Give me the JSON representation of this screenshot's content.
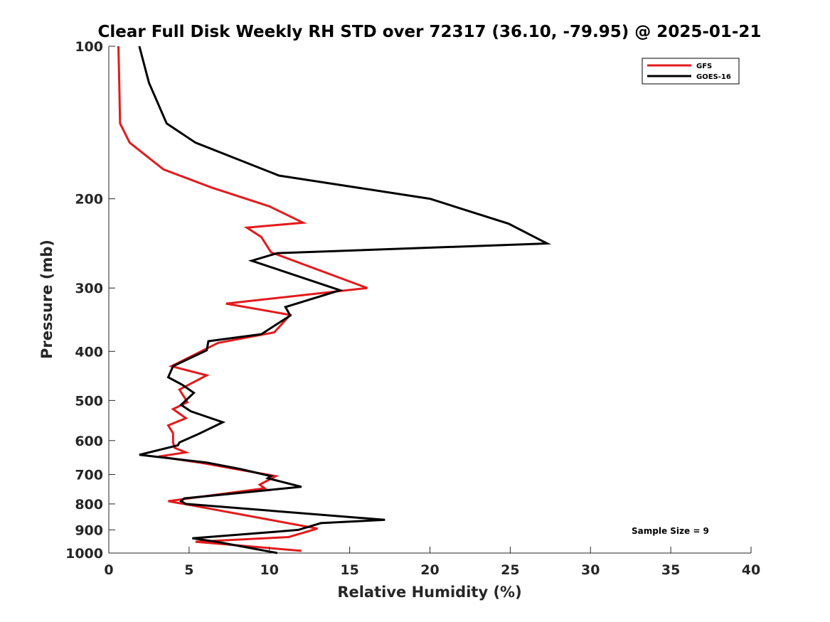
{
  "chart_data": {
    "type": "line",
    "title": "Clear Full Disk Weekly RH STD over 72317 (36.10, -79.95) @ 2025-01-21",
    "xlabel": "Relative Humidity (%)",
    "ylabel": "Pressure (mb)",
    "xlim": [
      0,
      40
    ],
    "ylim": [
      100,
      1000
    ],
    "yscale": "log",
    "y_reversed": true,
    "x_ticks": [
      0,
      5,
      10,
      15,
      20,
      25,
      30,
      35,
      40
    ],
    "y_ticks": [
      100,
      200,
      300,
      400,
      500,
      600,
      700,
      800,
      900,
      1000
    ],
    "grid": false,
    "legend_location": "top-right",
    "annotation": "Sample Size = 9",
    "series": [
      {
        "name": "GFS",
        "color": "#e31a1c",
        "x": [
          0.6,
          0.65,
          0.7,
          1.3,
          3.4,
          6.4,
          10,
          12.1,
          8.6,
          9.5,
          10.1,
          16.1,
          7.3,
          11.3,
          10.3,
          6.8,
          3.9,
          6.1,
          4.4,
          4.9,
          4.0,
          4.8,
          3.7,
          4.0,
          4.0,
          4.1,
          4.8,
          3.1,
          5.9,
          7.6,
          10.4,
          9.4,
          9.7,
          3.7,
          5.6,
          13.0,
          11.2,
          5.4,
          12.0
        ],
        "y": [
          100,
          118,
          142,
          155,
          175,
          190,
          207,
          223,
          228,
          238,
          255,
          300,
          322,
          339,
          367,
          385,
          428,
          446,
          476,
          504,
          520,
          542,
          560,
          580,
          605,
          620,
          633,
          645,
          665,
          680,
          705,
          733,
          745,
          790,
          810,
          895,
          930,
          950,
          990
        ]
      },
      {
        "name": "GOES-16",
        "color": "#000000",
        "x": [
          1.9,
          2.5,
          3.6,
          5.4,
          10.6,
          20.0,
          24.9,
          27.3,
          10.5,
          8.9,
          14.4,
          11.0,
          11.3,
          9.5,
          6.2,
          6.1,
          4.0,
          3.7,
          4.6,
          5.3,
          4.5,
          5.1,
          7.1,
          5.6,
          4.4,
          4.3,
          1.9,
          6.1,
          8.2,
          10.1,
          9.9,
          12.0,
          4.7,
          4.5,
          4.8,
          17.2,
          15.6,
          13.2,
          11.8,
          10.0,
          5.2,
          6.7,
          10.5
        ],
        "y": [
          100,
          118,
          142,
          155,
          180,
          200,
          224,
          245,
          256,
          265,
          303,
          327,
          340,
          370,
          382,
          398,
          428,
          450,
          466,
          483,
          510,
          525,
          552,
          582,
          605,
          613,
          640,
          663,
          683,
          705,
          712,
          740,
          780,
          790,
          800,
          860,
          865,
          873,
          900,
          910,
          935,
          950,
          1000
        ]
      }
    ]
  }
}
